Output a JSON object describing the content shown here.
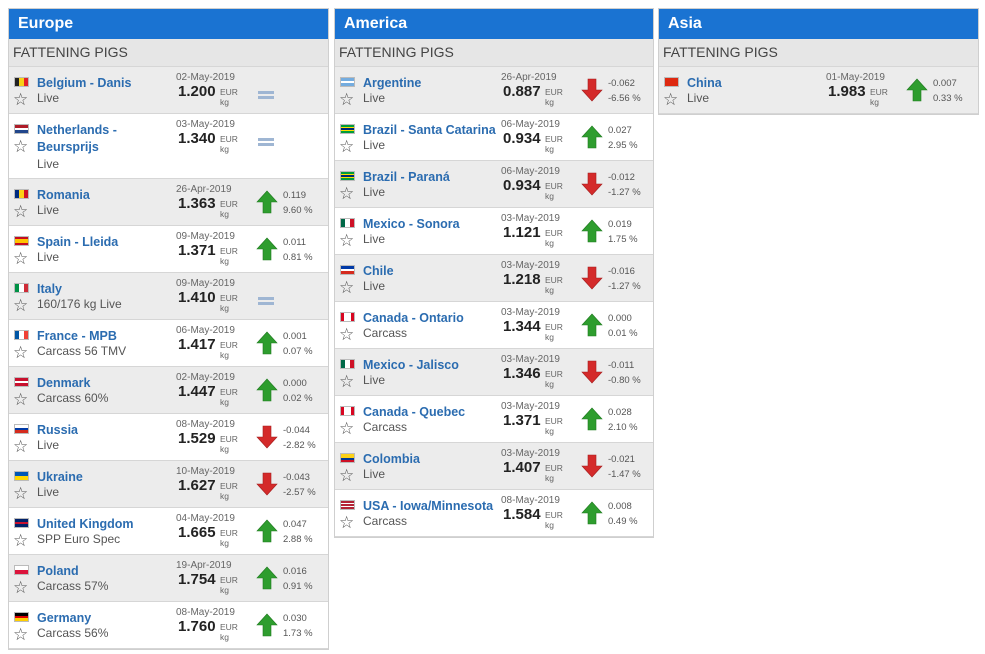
{
  "colors": {
    "header_bg": "#1a73d2",
    "link": "#2b6cb0",
    "up": "#2e9d2e",
    "down": "#d42a2a",
    "flat": "#9fb6d3"
  },
  "panels": [
    {
      "title": "Europe",
      "category": "FATTENING PIGS",
      "items": [
        {
          "name": "Belgium - Danis",
          "subtitle": "Live",
          "date": "02-May-2019",
          "price": "1.200",
          "currency": "EUR",
          "unit": "kg",
          "trend": "flat",
          "change": "",
          "change_pct": "",
          "flag": [
            "#222222",
            "#f7d117",
            "#e32127"
          ],
          "flag_dir": "v"
        },
        {
          "name": "Netherlands - Beursprijs",
          "subtitle": "Live",
          "date": "03-May-2019",
          "price": "1.340",
          "currency": "EUR",
          "unit": "kg",
          "trend": "flat",
          "change": "",
          "change_pct": "",
          "flag": [
            "#ae1c28",
            "#ffffff",
            "#21468b"
          ],
          "flag_dir": "h"
        },
        {
          "name": "Romania",
          "subtitle": "Live",
          "date": "26-Apr-2019",
          "price": "1.363",
          "currency": "EUR",
          "unit": "kg",
          "trend": "up",
          "change": "0.119",
          "change_pct": "9.60 %",
          "flag": [
            "#002b7f",
            "#fcd116",
            "#ce1126"
          ],
          "flag_dir": "v"
        },
        {
          "name": "Spain - Lleida",
          "subtitle": "Live",
          "date": "09-May-2019",
          "price": "1.371",
          "currency": "EUR",
          "unit": "kg",
          "trend": "up",
          "change": "0.011",
          "change_pct": "0.81 %",
          "flag": [
            "#c60b1e",
            "#ffc400",
            "#ffc400",
            "#c60b1e"
          ],
          "flag_dir": "h"
        },
        {
          "name": "Italy",
          "subtitle": "160/176 kg Live",
          "date": "09-May-2019",
          "price": "1.410",
          "currency": "EUR",
          "unit": "kg",
          "trend": "flat",
          "change": "",
          "change_pct": "",
          "flag": [
            "#009246",
            "#ffffff",
            "#ce2b37"
          ],
          "flag_dir": "v"
        },
        {
          "name": "France - MPB",
          "subtitle": "Carcass 56 TMV",
          "date": "06-May-2019",
          "price": "1.417",
          "currency": "EUR",
          "unit": "kg",
          "trend": "up",
          "change": "0.001",
          "change_pct": "0.07 %",
          "flag": [
            "#0055a4",
            "#ffffff",
            "#ef4135"
          ],
          "flag_dir": "v"
        },
        {
          "name": "Denmark",
          "subtitle": "Carcass 60%",
          "date": "02-May-2019",
          "price": "1.447",
          "currency": "EUR",
          "unit": "kg",
          "trend": "up",
          "change": "0.000",
          "change_pct": "0.02 %",
          "flag": [
            "#c8102e",
            "#ffffff",
            "#c8102e"
          ],
          "flag_dir": "h"
        },
        {
          "name": "Russia",
          "subtitle": "Live",
          "date": "08-May-2019",
          "price": "1.529",
          "currency": "EUR",
          "unit": "kg",
          "trend": "down",
          "change": "-0.044",
          "change_pct": "-2.82 %",
          "flag": [
            "#ffffff",
            "#0039a6",
            "#d52b1e"
          ],
          "flag_dir": "h"
        },
        {
          "name": "Ukraine",
          "subtitle": "Live",
          "date": "10-May-2019",
          "price": "1.627",
          "currency": "EUR",
          "unit": "kg",
          "trend": "down",
          "change": "-0.043",
          "change_pct": "-2.57 %",
          "flag": [
            "#0057b7",
            "#ffd700"
          ],
          "flag_dir": "h"
        },
        {
          "name": "United Kingdom",
          "subtitle": "SPP Euro Spec",
          "date": "04-May-2019",
          "price": "1.665",
          "currency": "EUR",
          "unit": "kg",
          "trend": "up",
          "change": "0.047",
          "change_pct": "2.88 %",
          "flag": [
            "#012169",
            "#c8102e",
            "#012169"
          ],
          "flag_dir": "h"
        },
        {
          "name": "Poland",
          "subtitle": "Carcass 57%",
          "date": "19-Apr-2019",
          "price": "1.754",
          "currency": "EUR",
          "unit": "kg",
          "trend": "up",
          "change": "0.016",
          "change_pct": "0.91 %",
          "flag": [
            "#ffffff",
            "#dc143c"
          ],
          "flag_dir": "h"
        },
        {
          "name": "Germany",
          "subtitle": "Carcass 56%",
          "date": "08-May-2019",
          "price": "1.760",
          "currency": "EUR",
          "unit": "kg",
          "trend": "up",
          "change": "0.030",
          "change_pct": "1.73 %",
          "flag": [
            "#000000",
            "#dd0000",
            "#ffce00"
          ],
          "flag_dir": "h"
        }
      ]
    },
    {
      "title": "America",
      "category": "FATTENING PIGS",
      "items": [
        {
          "name": "Argentine",
          "subtitle": "Live",
          "date": "26-Apr-2019",
          "price": "0.887",
          "currency": "EUR",
          "unit": "kg",
          "trend": "down",
          "change": "-0.062",
          "change_pct": "-6.56 %",
          "flag": [
            "#74acdf",
            "#ffffff",
            "#74acdf"
          ],
          "flag_dir": "h"
        },
        {
          "name": "Brazil - Santa Catarina",
          "subtitle": "Live",
          "date": "06-May-2019",
          "price": "0.934",
          "currency": "EUR",
          "unit": "kg",
          "trend": "up",
          "change": "0.027",
          "change_pct": "2.95 %",
          "flag": [
            "#009c3b",
            "#ffdf00",
            "#002776",
            "#ffdf00",
            "#009c3b"
          ],
          "flag_dir": "h"
        },
        {
          "name": "Brazil - Paraná",
          "subtitle": "Live",
          "date": "06-May-2019",
          "price": "0.934",
          "currency": "EUR",
          "unit": "kg",
          "trend": "down",
          "change": "-0.012",
          "change_pct": "-1.27 %",
          "flag": [
            "#009c3b",
            "#ffdf00",
            "#002776",
            "#ffdf00",
            "#009c3b"
          ],
          "flag_dir": "h"
        },
        {
          "name": "Mexico - Sonora",
          "subtitle": "Live",
          "date": "03-May-2019",
          "price": "1.121",
          "currency": "EUR",
          "unit": "kg",
          "trend": "up",
          "change": "0.019",
          "change_pct": "1.75 %",
          "flag": [
            "#006847",
            "#ffffff",
            "#ce1126"
          ],
          "flag_dir": "v"
        },
        {
          "name": "Chile",
          "subtitle": "Live",
          "date": "03-May-2019",
          "price": "1.218",
          "currency": "EUR",
          "unit": "kg",
          "trend": "down",
          "change": "-0.016",
          "change_pct": "-1.27 %",
          "flag": [
            "#0039a6",
            "#ffffff",
            "#d52b1e"
          ],
          "flag_dir": "h"
        },
        {
          "name": "Canada - Ontario",
          "subtitle": "Carcass",
          "date": "03-May-2019",
          "price": "1.344",
          "currency": "EUR",
          "unit": "kg",
          "trend": "up",
          "change": "0.000",
          "change_pct": "0.01 %",
          "flag": [
            "#d80621",
            "#ffffff",
            "#ffffff",
            "#d80621"
          ],
          "flag_dir": "v"
        },
        {
          "name": "Mexico - Jalisco",
          "subtitle": "Live",
          "date": "03-May-2019",
          "price": "1.346",
          "currency": "EUR",
          "unit": "kg",
          "trend": "down",
          "change": "-0.011",
          "change_pct": "-0.80 %",
          "flag": [
            "#006847",
            "#ffffff",
            "#ce1126"
          ],
          "flag_dir": "v"
        },
        {
          "name": "Canada - Quebec",
          "subtitle": "Carcass",
          "date": "03-May-2019",
          "price": "1.371",
          "currency": "EUR",
          "unit": "kg",
          "trend": "up",
          "change": "0.028",
          "change_pct": "2.10 %",
          "flag": [
            "#d80621",
            "#ffffff",
            "#ffffff",
            "#d80621"
          ],
          "flag_dir": "v"
        },
        {
          "name": "Colombia",
          "subtitle": "Live",
          "date": "03-May-2019",
          "price": "1.407",
          "currency": "EUR",
          "unit": "kg",
          "trend": "down",
          "change": "-0.021",
          "change_pct": "-1.47 %",
          "flag": [
            "#fcd116",
            "#fcd116",
            "#003893",
            "#ce1126"
          ],
          "flag_dir": "h"
        },
        {
          "name": "USA - Iowa/Minnesota",
          "subtitle": "Carcass",
          "date": "08-May-2019",
          "price": "1.584",
          "currency": "EUR",
          "unit": "kg",
          "trend": "up",
          "change": "0.008",
          "change_pct": "0.49 %",
          "flag": [
            "#b22234",
            "#ffffff",
            "#b22234",
            "#ffffff",
            "#b22234"
          ],
          "flag_dir": "h"
        }
      ]
    },
    {
      "title": "Asia",
      "category": "FATTENING PIGS",
      "items": [
        {
          "name": "China",
          "subtitle": "Live",
          "date": "01-May-2019",
          "price": "1.983",
          "currency": "EUR",
          "unit": "kg",
          "trend": "up",
          "change": "0.007",
          "change_pct": "0.33 %",
          "flag": [
            "#de2910"
          ],
          "flag_dir": "h"
        }
      ]
    }
  ]
}
